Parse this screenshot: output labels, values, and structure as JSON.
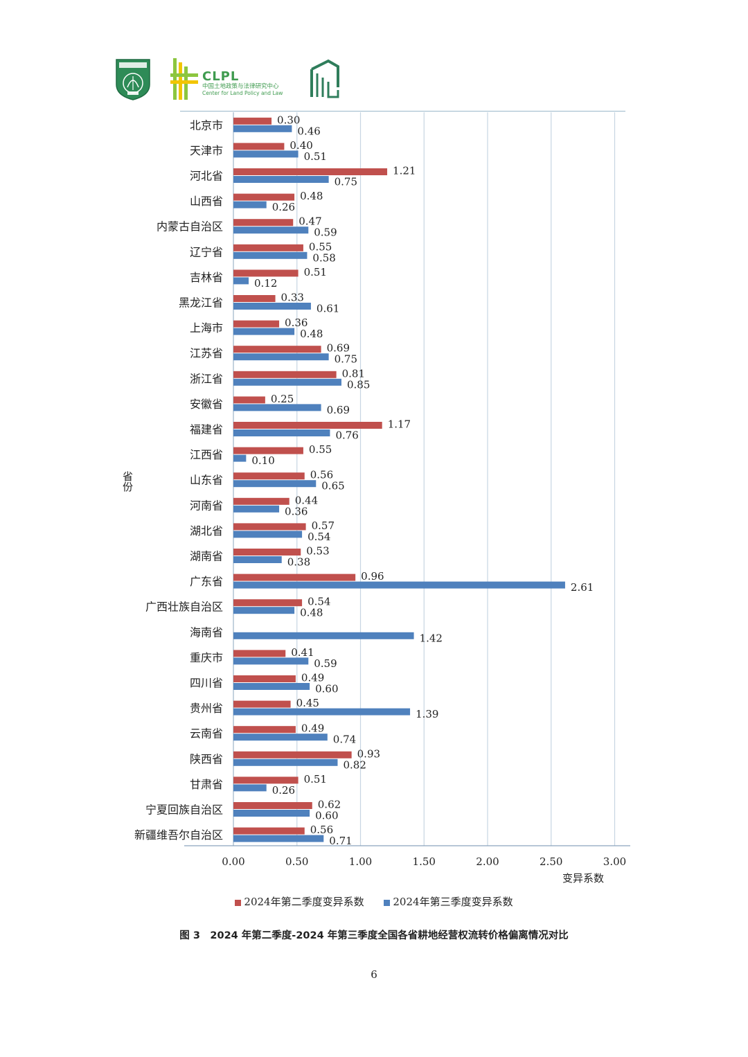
{
  "header": {
    "clpl_title": "CLPL",
    "clpl_cn": "中国土地政策与法律研究中心",
    "clpl_en": "Center for Land Policy and Law"
  },
  "colors": {
    "q2": "#c0504d",
    "q3": "#4f81bd",
    "grid": "#c6d5e2",
    "accent_green": "#3f9b4f"
  },
  "chart_data": {
    "type": "bar",
    "orientation": "horizontal",
    "ylabel": "省份",
    "xlabel": "变异系数",
    "xlim": [
      0,
      3
    ],
    "xticks": [
      "0.00",
      "0.50",
      "1.00",
      "1.50",
      "2.00",
      "2.50",
      "3.00"
    ],
    "grid": true,
    "legend_position": "bottom",
    "categories": [
      "北京市",
      "天津市",
      "河北省",
      "山西省",
      "内蒙古自治区",
      "辽宁省",
      "吉林省",
      "黑龙江省",
      "上海市",
      "江苏省",
      "浙江省",
      "安徽省",
      "福建省",
      "江西省",
      "山东省",
      "河南省",
      "湖北省",
      "湖南省",
      "广东省",
      "广西壮族自治区",
      "海南省",
      "重庆市",
      "四川省",
      "贵州省",
      "云南省",
      "陕西省",
      "甘肃省",
      "宁夏回族自治区",
      "新疆维吾尔自治区"
    ],
    "series": [
      {
        "name": "2024年第二季度变异系数",
        "values": [
          0.3,
          0.4,
          1.21,
          0.48,
          0.47,
          0.55,
          0.51,
          0.33,
          0.36,
          0.69,
          0.81,
          0.25,
          1.17,
          0.55,
          0.56,
          0.44,
          0.57,
          0.53,
          0.96,
          0.54,
          null,
          0.41,
          0.49,
          0.45,
          0.49,
          0.93,
          0.51,
          0.62,
          0.56
        ],
        "labels": [
          "0.30",
          "0.40",
          "1.21",
          "0.48",
          "0.47",
          "0.55",
          "0.51",
          "0.33",
          "0.36",
          "0.69",
          "0.81",
          "0.25",
          "1.17",
          "0.55",
          "0.56",
          "0.44",
          "0.57",
          "0.53",
          "0.96",
          "0.54",
          "",
          "0.41",
          "0.49",
          "0.45",
          "0.49",
          "0.93",
          "0.51",
          "0.62",
          "0.56"
        ]
      },
      {
        "name": "2024年第三季度变异系数",
        "values": [
          0.46,
          0.51,
          0.75,
          0.26,
          0.59,
          0.58,
          0.12,
          0.61,
          0.48,
          0.75,
          0.85,
          0.69,
          0.76,
          0.1,
          0.65,
          0.36,
          0.54,
          0.38,
          2.61,
          0.48,
          1.42,
          0.59,
          0.6,
          1.39,
          0.74,
          0.82,
          0.26,
          0.6,
          0.71
        ],
        "labels": [
          "0.46",
          "0.51",
          "0.75",
          "0.26",
          "0.59",
          "0.58",
          "0.12",
          "0.61",
          "0.48",
          "0.75",
          "0.85",
          "0.69",
          "0.76",
          "0.10",
          "0.65",
          "0.36",
          "0.54",
          "0.38",
          "2.61",
          "0.48",
          "1.42",
          "0.59",
          "0.60",
          "1.39",
          "0.74",
          "0.82",
          "0.26",
          "0.60",
          "0.71"
        ]
      }
    ]
  },
  "caption": "图 3　2024 年第二季度-2024 年第三季度全国各省耕地经营权流转价格偏离情况对比",
  "page_number": "6"
}
